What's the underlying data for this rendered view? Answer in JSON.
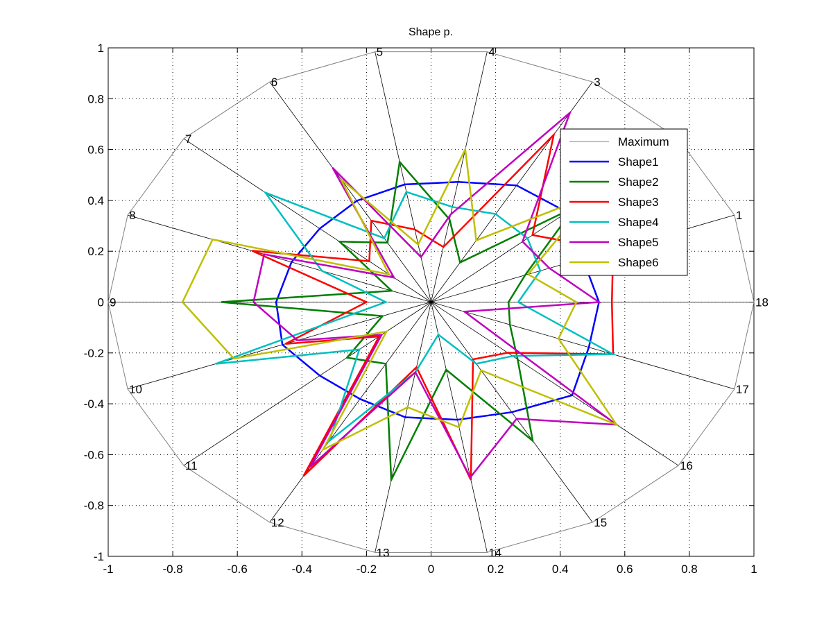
{
  "chart_data": {
    "type": "radar",
    "title": "Shape p.",
    "xlim": [
      -1,
      1
    ],
    "ylim": [
      -1,
      1
    ],
    "xticks": [
      "-1",
      "-0.8",
      "-0.6",
      "-0.4",
      "-0.2",
      "0",
      "0.2",
      "0.4",
      "0.6",
      "0.8",
      "1"
    ],
    "yticks": [
      "-1",
      "-0.8",
      "-0.6",
      "-0.4",
      "-0.2",
      "0",
      "0.2",
      "0.4",
      "0.6",
      "0.8",
      "1"
    ],
    "grid": true,
    "grid_style": "dotted",
    "legend_position": "right",
    "axes": [
      "1",
      "2",
      "3",
      "4",
      "5",
      "6",
      "7",
      "8",
      "9",
      "10",
      "11",
      "12",
      "13",
      "14",
      "15",
      "16",
      "17",
      "18"
    ],
    "start_angle_deg": 20,
    "step_deg": 20,
    "colors": {
      "maximum": "#808080",
      "spokes": "#000000"
    },
    "series": [
      {
        "name": "Maximum",
        "color": "#808080",
        "width": 1,
        "values": [
          1,
          1,
          1,
          1,
          1,
          1,
          1,
          1,
          1,
          1,
          1,
          1,
          1,
          1,
          1,
          1,
          1,
          1
        ]
      },
      {
        "name": "Shape1",
        "color": "#0000ff",
        "width": 2.5,
        "values": [
          0.5,
          0.55,
          0.53,
          0.48,
          0.47,
          0.46,
          0.45,
          0.46,
          0.48,
          0.49,
          0.45,
          0.44,
          0.46,
          0.47,
          0.5,
          0.57,
          0.52,
          0.52
        ]
      },
      {
        "name": "Shape2",
        "color": "#007f00",
        "width": 2.5,
        "values": [
          0.31,
          0.58,
          0.18,
          0.33,
          0.56,
          0.27,
          0.37,
          0.13,
          0.65,
          0.16,
          0.34,
          0.28,
          0.71,
          0.27,
          0.63,
          0.35,
          0.26,
          0.24
        ]
      },
      {
        "name": "Shape3",
        "color": "#ff0000",
        "width": 2.5,
        "values": [
          0.6,
          0.41,
          0.76,
          0.22,
          0.29,
          0.37,
          0.25,
          0.59,
          0.2,
          0.48,
          0.21,
          0.79,
          0.26,
          0.71,
          0.26,
          0.31,
          0.6,
          0.56
        ]
      },
      {
        "name": "Shape4",
        "color": "#00bfbf",
        "width": 2.5,
        "values": [
          0.36,
          0.39,
          0.4,
          0.38,
          0.44,
          0.29,
          0.67,
          0.36,
          0.14,
          0.71,
          0.29,
          0.63,
          0.28,
          0.13,
          0.28,
          0.33,
          0.6,
          0.27
        ]
      },
      {
        "name": "Shape5",
        "color": "#bf00bf",
        "width": 2.5,
        "values": [
          0.39,
          0.37,
          0.86,
          0.35,
          0.18,
          0.61,
          0.15,
          0.55,
          0.55,
          0.44,
          0.2,
          0.75,
          0.28,
          0.7,
          0.53,
          0.75,
          0.11,
          0.52
        ]
      },
      {
        "name": "Shape6",
        "color": "#bfbf00",
        "width": 2.5,
        "values": [
          0.32,
          0.66,
          0.28,
          0.61,
          0.23,
          0.56,
          0.17,
          0.72,
          0.77,
          0.65,
          0.18,
          0.67,
          0.42,
          0.5,
          0.31,
          0.75,
          0.42,
          0.45
        ]
      }
    ]
  }
}
